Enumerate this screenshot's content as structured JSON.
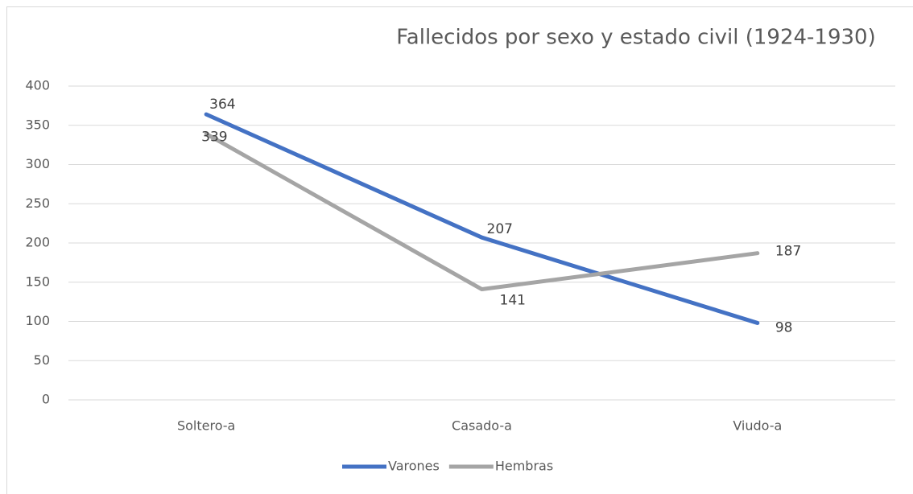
{
  "chart_data": {
    "type": "line",
    "title": "Fallecidos por sexo y estado civil (1924-1930)",
    "categories": [
      "Soltero-a",
      "Casado-a",
      "Viudo-a"
    ],
    "series": [
      {
        "name": "Varones",
        "color": "#4472c4",
        "values": [
          364,
          207,
          98
        ]
      },
      {
        "name": "Hembras",
        "color": "#a5a5a5",
        "values": [
          339,
          141,
          187
        ]
      }
    ],
    "ylim": [
      0,
      400
    ],
    "yticks": [
      0,
      50,
      100,
      150,
      200,
      250,
      300,
      350,
      400
    ],
    "grid": true,
    "legend": "bottom"
  }
}
